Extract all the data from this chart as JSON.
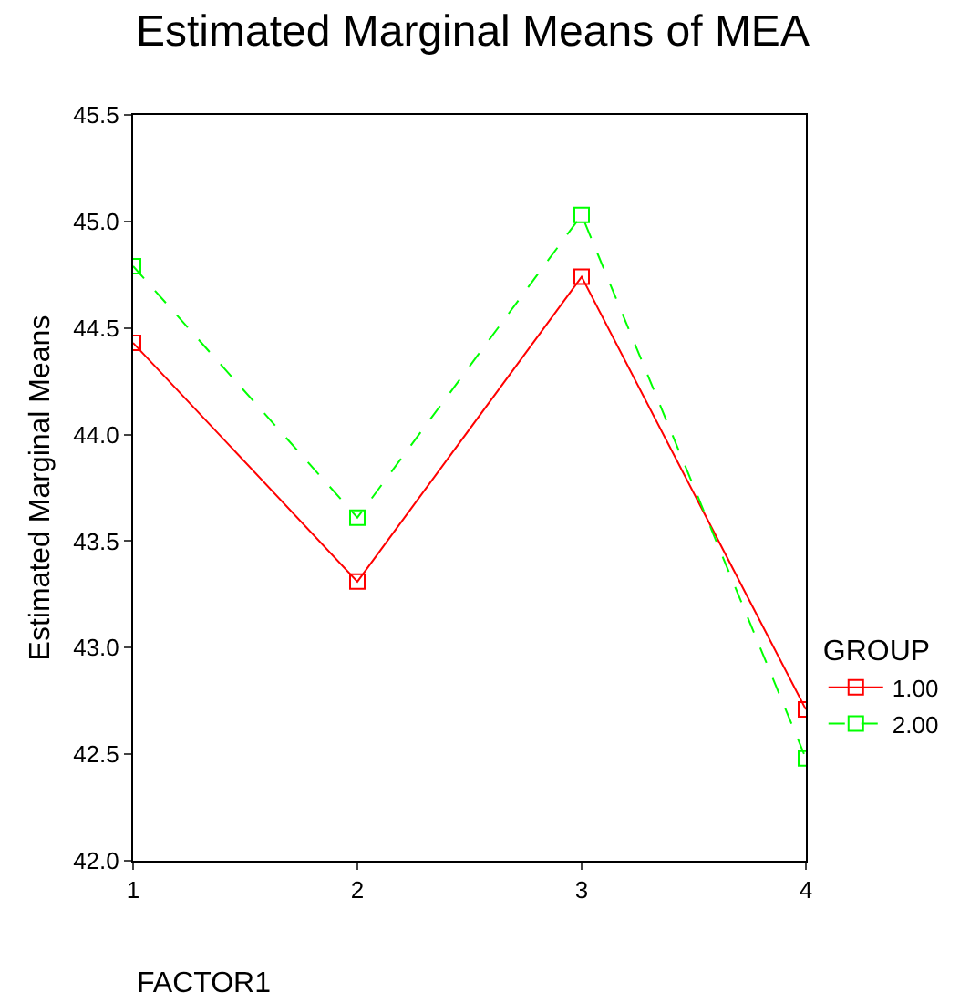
{
  "chart_data": {
    "type": "line",
    "title": "Estimated Marginal Means of MEA",
    "xlabel": "FACTOR1",
    "ylabel": "Estimated Marginal Means",
    "legend_title": "GROUP",
    "x": [
      1,
      2,
      3,
      4
    ],
    "series": [
      {
        "name": "1.00",
        "color": "#ff0000",
        "values": [
          44.43,
          43.31,
          44.74,
          42.71
        ],
        "line_style": "solid"
      },
      {
        "name": "2.00",
        "color": "#00ff00",
        "values": [
          44.79,
          43.61,
          45.03,
          42.48
        ],
        "line_style": "dashed"
      }
    ],
    "xlim": [
      1,
      4
    ],
    "xticks": [
      1,
      2,
      3,
      4
    ],
    "ylim": [
      42,
      45.5
    ],
    "yticks": [
      {
        "value": 42,
        "label": "42.0"
      },
      {
        "value": 42.5,
        "label": "42.5"
      },
      {
        "value": 43,
        "label": "43.0"
      },
      {
        "value": 43.5,
        "label": "43.5"
      },
      {
        "value": 44,
        "label": "44.0"
      },
      {
        "value": 44.5,
        "label": "44.5"
      },
      {
        "value": 45,
        "label": "45.0"
      },
      {
        "value": 45.5,
        "label": "45.5"
      }
    ],
    "marker": "square",
    "legend": "right",
    "grid": false
  }
}
